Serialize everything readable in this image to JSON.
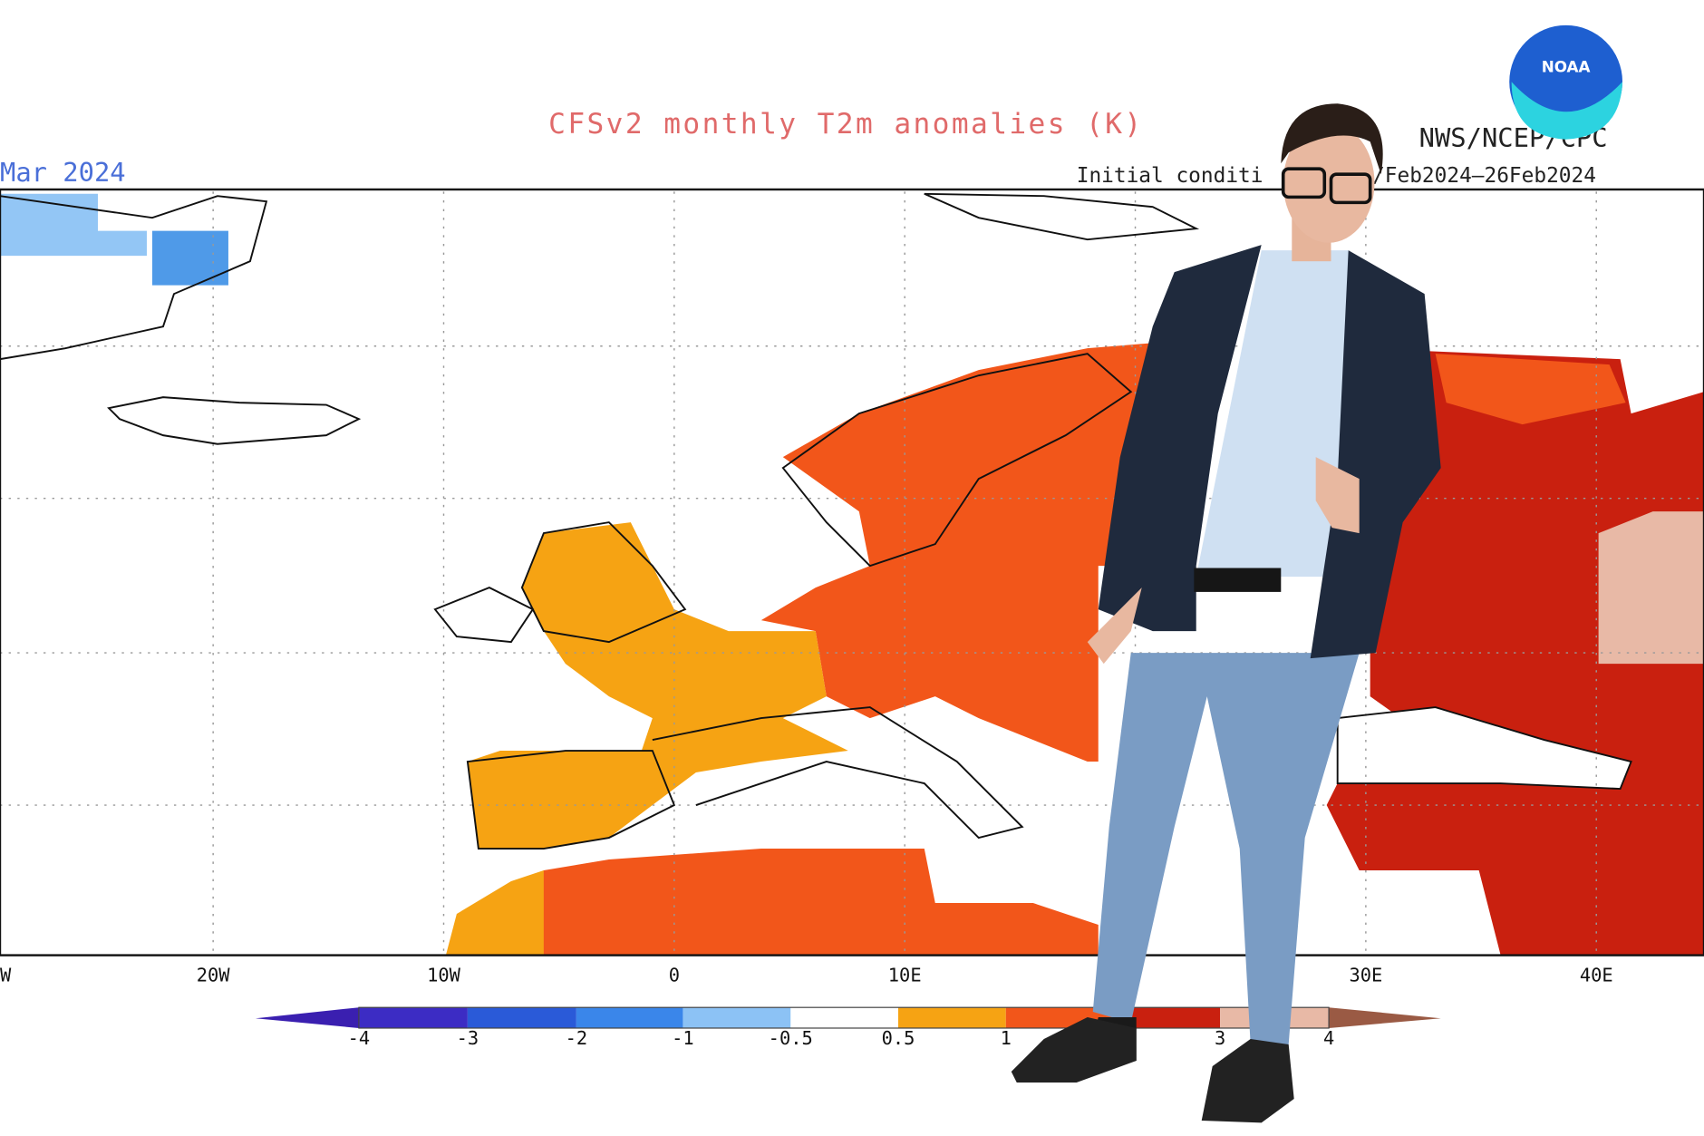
{
  "map": {
    "title": "CFSv2 monthly T2m anomalies (K)",
    "period": "Mar 2024",
    "source": "NWS/NCEP/CPC",
    "logo": "NOAA",
    "initial_conditions_a": "Initial conditi",
    "initial_conditions_b": "/Feb2024–26Feb2024",
    "longitude_labels": [
      "W",
      "20W",
      "10W",
      "0",
      "10E",
      "30E",
      "40E"
    ]
  },
  "colorbar": {
    "labels": [
      "-4",
      "-3",
      "-2",
      "-1",
      "-0.5",
      "0.5",
      "1",
      "3",
      "4"
    ]
  }
}
